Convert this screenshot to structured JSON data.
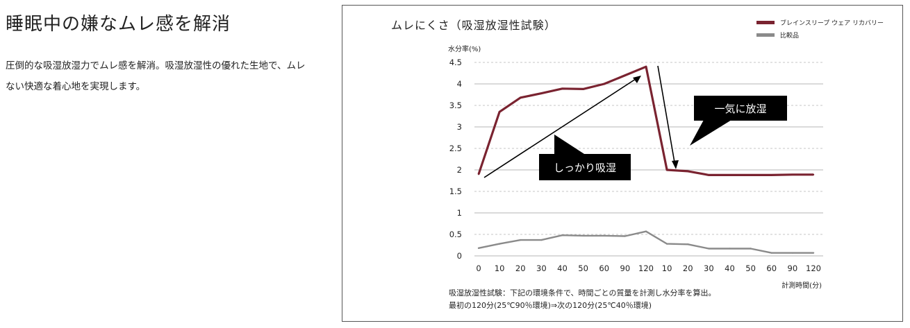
{
  "heading": "睡眠中の嫌なムレ感を解消",
  "description": "圧倒的な吸湿放湿力でムレ感を解消。吸湿放湿性の優れた生地で、ムレない快適な着心地を実現します。",
  "colors": {
    "product": "#7a2330",
    "comparison": "#8a8a8a",
    "callout_bg": "#000000"
  },
  "chart_data": {
    "type": "line",
    "title": "ムレにくさ（吸湿放湿性試験）",
    "ylabel": "水分率(%)",
    "xlabel": "計測時間(分)",
    "ylim": [
      0,
      4.5
    ],
    "yticks": [
      "4.5",
      "4",
      "3.5",
      "3",
      "2.5",
      "2",
      "1.5",
      "1",
      "0.5",
      "0"
    ],
    "categories": [
      "0",
      "10",
      "20",
      "30",
      "40",
      "50",
      "60",
      "90",
      "120",
      "10",
      "20",
      "30",
      "40",
      "50",
      "60",
      "90",
      "120"
    ],
    "grid": true,
    "legend_position": "top-right",
    "series": [
      {
        "name": "ブレインスリープ ウェア リカバリー",
        "color": "#7a2330",
        "values": [
          1.9,
          3.35,
          3.68,
          3.78,
          3.89,
          3.88,
          4.0,
          4.2,
          4.4,
          2.0,
          1.97,
          1.88,
          1.88,
          1.88,
          1.88,
          1.89,
          1.89
        ]
      },
      {
        "name": "比較品",
        "color": "#8a8a8a",
        "values": [
          0.18,
          0.28,
          0.37,
          0.37,
          0.48,
          0.47,
          0.47,
          0.46,
          0.57,
          0.28,
          0.27,
          0.17,
          0.17,
          0.17,
          0.07,
          0.07,
          0.07
        ]
      }
    ],
    "annotations": [
      {
        "text": "しっかり吸湿"
      },
      {
        "text": "一気に放湿"
      }
    ],
    "notes": [
      "吸湿放湿性試験：下記の環境条件で、時間ごとの質量を計測し水分率を算出。",
      "最初の120分(25℃90％環境)⇒次の120分(25℃40％環境)"
    ]
  }
}
